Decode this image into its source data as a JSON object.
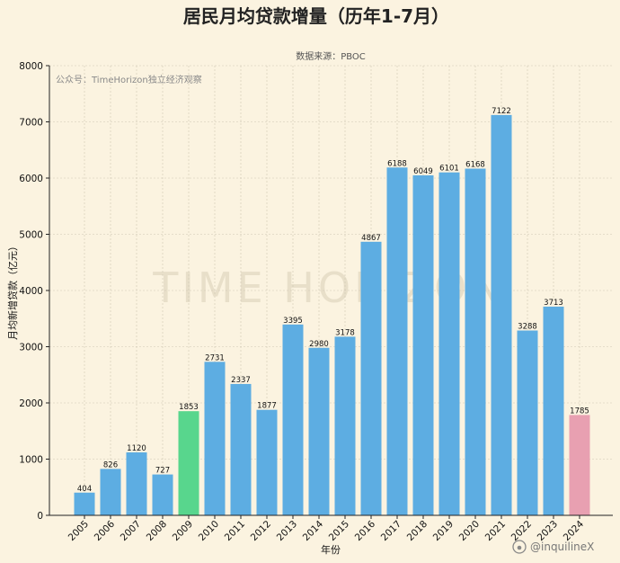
{
  "chart_data": {
    "type": "bar",
    "title": "居民月均贷款增量（历年1-7月）",
    "subtitle": "数据来源：PBOC",
    "watermark_text": "公众号：TimeHorizon独立经济观察",
    "watermark_big": "TIME HORIZON",
    "credit": "@inquilineX",
    "xlabel": "年份",
    "ylabel": "月均新增贷款（亿元）",
    "ylim": [
      0,
      8000
    ],
    "yticks": [
      0,
      1000,
      2000,
      3000,
      4000,
      5000,
      6000,
      7000,
      8000
    ],
    "grid": true,
    "categories": [
      "2005",
      "2006",
      "2007",
      "2008",
      "2009",
      "2010",
      "2011",
      "2012",
      "2013",
      "2014",
      "2015",
      "2016",
      "2017",
      "2018",
      "2019",
      "2020",
      "2021",
      "2022",
      "2023",
      "2024"
    ],
    "values": [
      404,
      826,
      1120,
      727,
      1853,
      2731,
      2337,
      1877,
      3395,
      2980,
      3178,
      4867,
      6188,
      6049,
      6101,
      6168,
      7122,
      3288,
      3713,
      1785
    ],
    "colors": {
      "default": "#5dade2",
      "2009": "#58d68d",
      "2024": "#e8a0b1"
    }
  }
}
